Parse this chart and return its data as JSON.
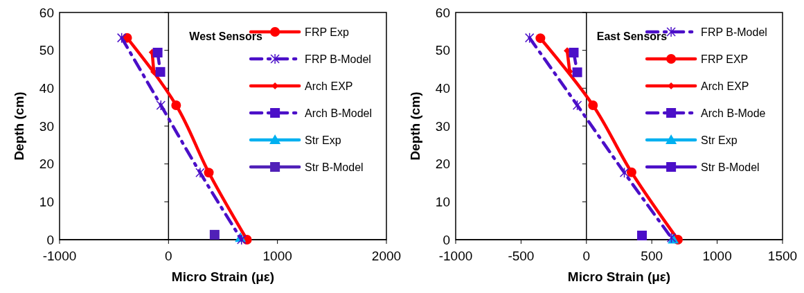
{
  "chart_data": [
    {
      "type": "line",
      "title": "West Sensors",
      "xlabel": "Micro Strain (με)",
      "ylabel": "Depth (cm)",
      "xlim": [
        -1000,
        2000
      ],
      "xticks": [
        -1000,
        0,
        1000,
        2000
      ],
      "ylim": [
        0,
        60
      ],
      "yticks": [
        0,
        10,
        20,
        30,
        40,
        50,
        60
      ],
      "legend": "right",
      "series": [
        {
          "name": "FRP Exp",
          "color": "#ff0000",
          "marker": "circle",
          "line_style": "solid",
          "x": [
            -380,
            70,
            370,
            720
          ],
          "values": [
            53.3,
            35.5,
            17.7,
            0
          ]
        },
        {
          "name": "FRP B-Model",
          "color": "#4b0fc8",
          "marker": "cross",
          "line_style": "dashed",
          "x": [
            -430,
            -70,
            290,
            670
          ],
          "values": [
            53.3,
            35.5,
            17.7,
            0
          ]
        },
        {
          "name": "Arch EXP",
          "color": "#ff0000",
          "marker": "diamond",
          "line_style": "solid",
          "x": [
            -150,
            -135
          ],
          "values": [
            49.5,
            44.3
          ]
        },
        {
          "name": "Arch B-Model",
          "color": "#4b0fc8",
          "marker": "square",
          "line_style": "dashed",
          "x": [
            -100,
            -75
          ],
          "values": [
            49.4,
            44.3
          ]
        },
        {
          "name": "Str Exp",
          "color": "#00b0f0",
          "marker": "triangle",
          "line_style": "solid",
          "x": [
            660
          ],
          "values": [
            0.5
          ]
        },
        {
          "name": "Str B-Model",
          "color": "#5020b8",
          "marker": "square",
          "line_style": "solid",
          "x": [
            423
          ],
          "values": [
            1.3
          ]
        }
      ]
    },
    {
      "type": "line",
      "title": "East Sensors",
      "xlabel": "Micro Strain (με)",
      "ylabel": "Depth (cm)",
      "xlim": [
        -1000,
        1500
      ],
      "xticks": [
        -1000,
        -500,
        0,
        500,
        1000,
        1500
      ],
      "ylim": [
        0,
        60
      ],
      "yticks": [
        0,
        10,
        20,
        30,
        40,
        50,
        60
      ],
      "legend": "right",
      "series": [
        {
          "name": "FRP B-Model",
          "color": "#4b0fc8",
          "marker": "cross",
          "line_style": "dashed",
          "x": [
            -435,
            -70,
            290,
            650
          ],
          "values": [
            53.3,
            35.5,
            17.7,
            0.5
          ]
        },
        {
          "name": "FRP EXP",
          "color": "#ff0000",
          "marker": "circle",
          "line_style": "solid",
          "x": [
            -352,
            50,
            345,
            700
          ],
          "values": [
            53.2,
            35.5,
            17.8,
            0
          ]
        },
        {
          "name": "Arch EXP",
          "color": "#ff0000",
          "marker": "diamond",
          "line_style": "solid",
          "x": [
            -147,
            -128
          ],
          "values": [
            49.9,
            44.4
          ]
        },
        {
          "name": "Arch B-Mode",
          "color": "#4b0fc8",
          "marker": "square",
          "line_style": "dashed",
          "x": [
            -97,
            -70
          ],
          "values": [
            49.4,
            44.2
          ]
        },
        {
          "name": "Str Exp",
          "color": "#00b0f0",
          "marker": "triangle",
          "line_style": "solid",
          "x": [
            664
          ],
          "values": [
            0.1
          ]
        },
        {
          "name": "Str B-Model",
          "color": "#4b0fc8",
          "marker": "square",
          "line_style": "solid",
          "x": [
            425
          ],
          "values": [
            1.1
          ]
        }
      ]
    }
  ]
}
